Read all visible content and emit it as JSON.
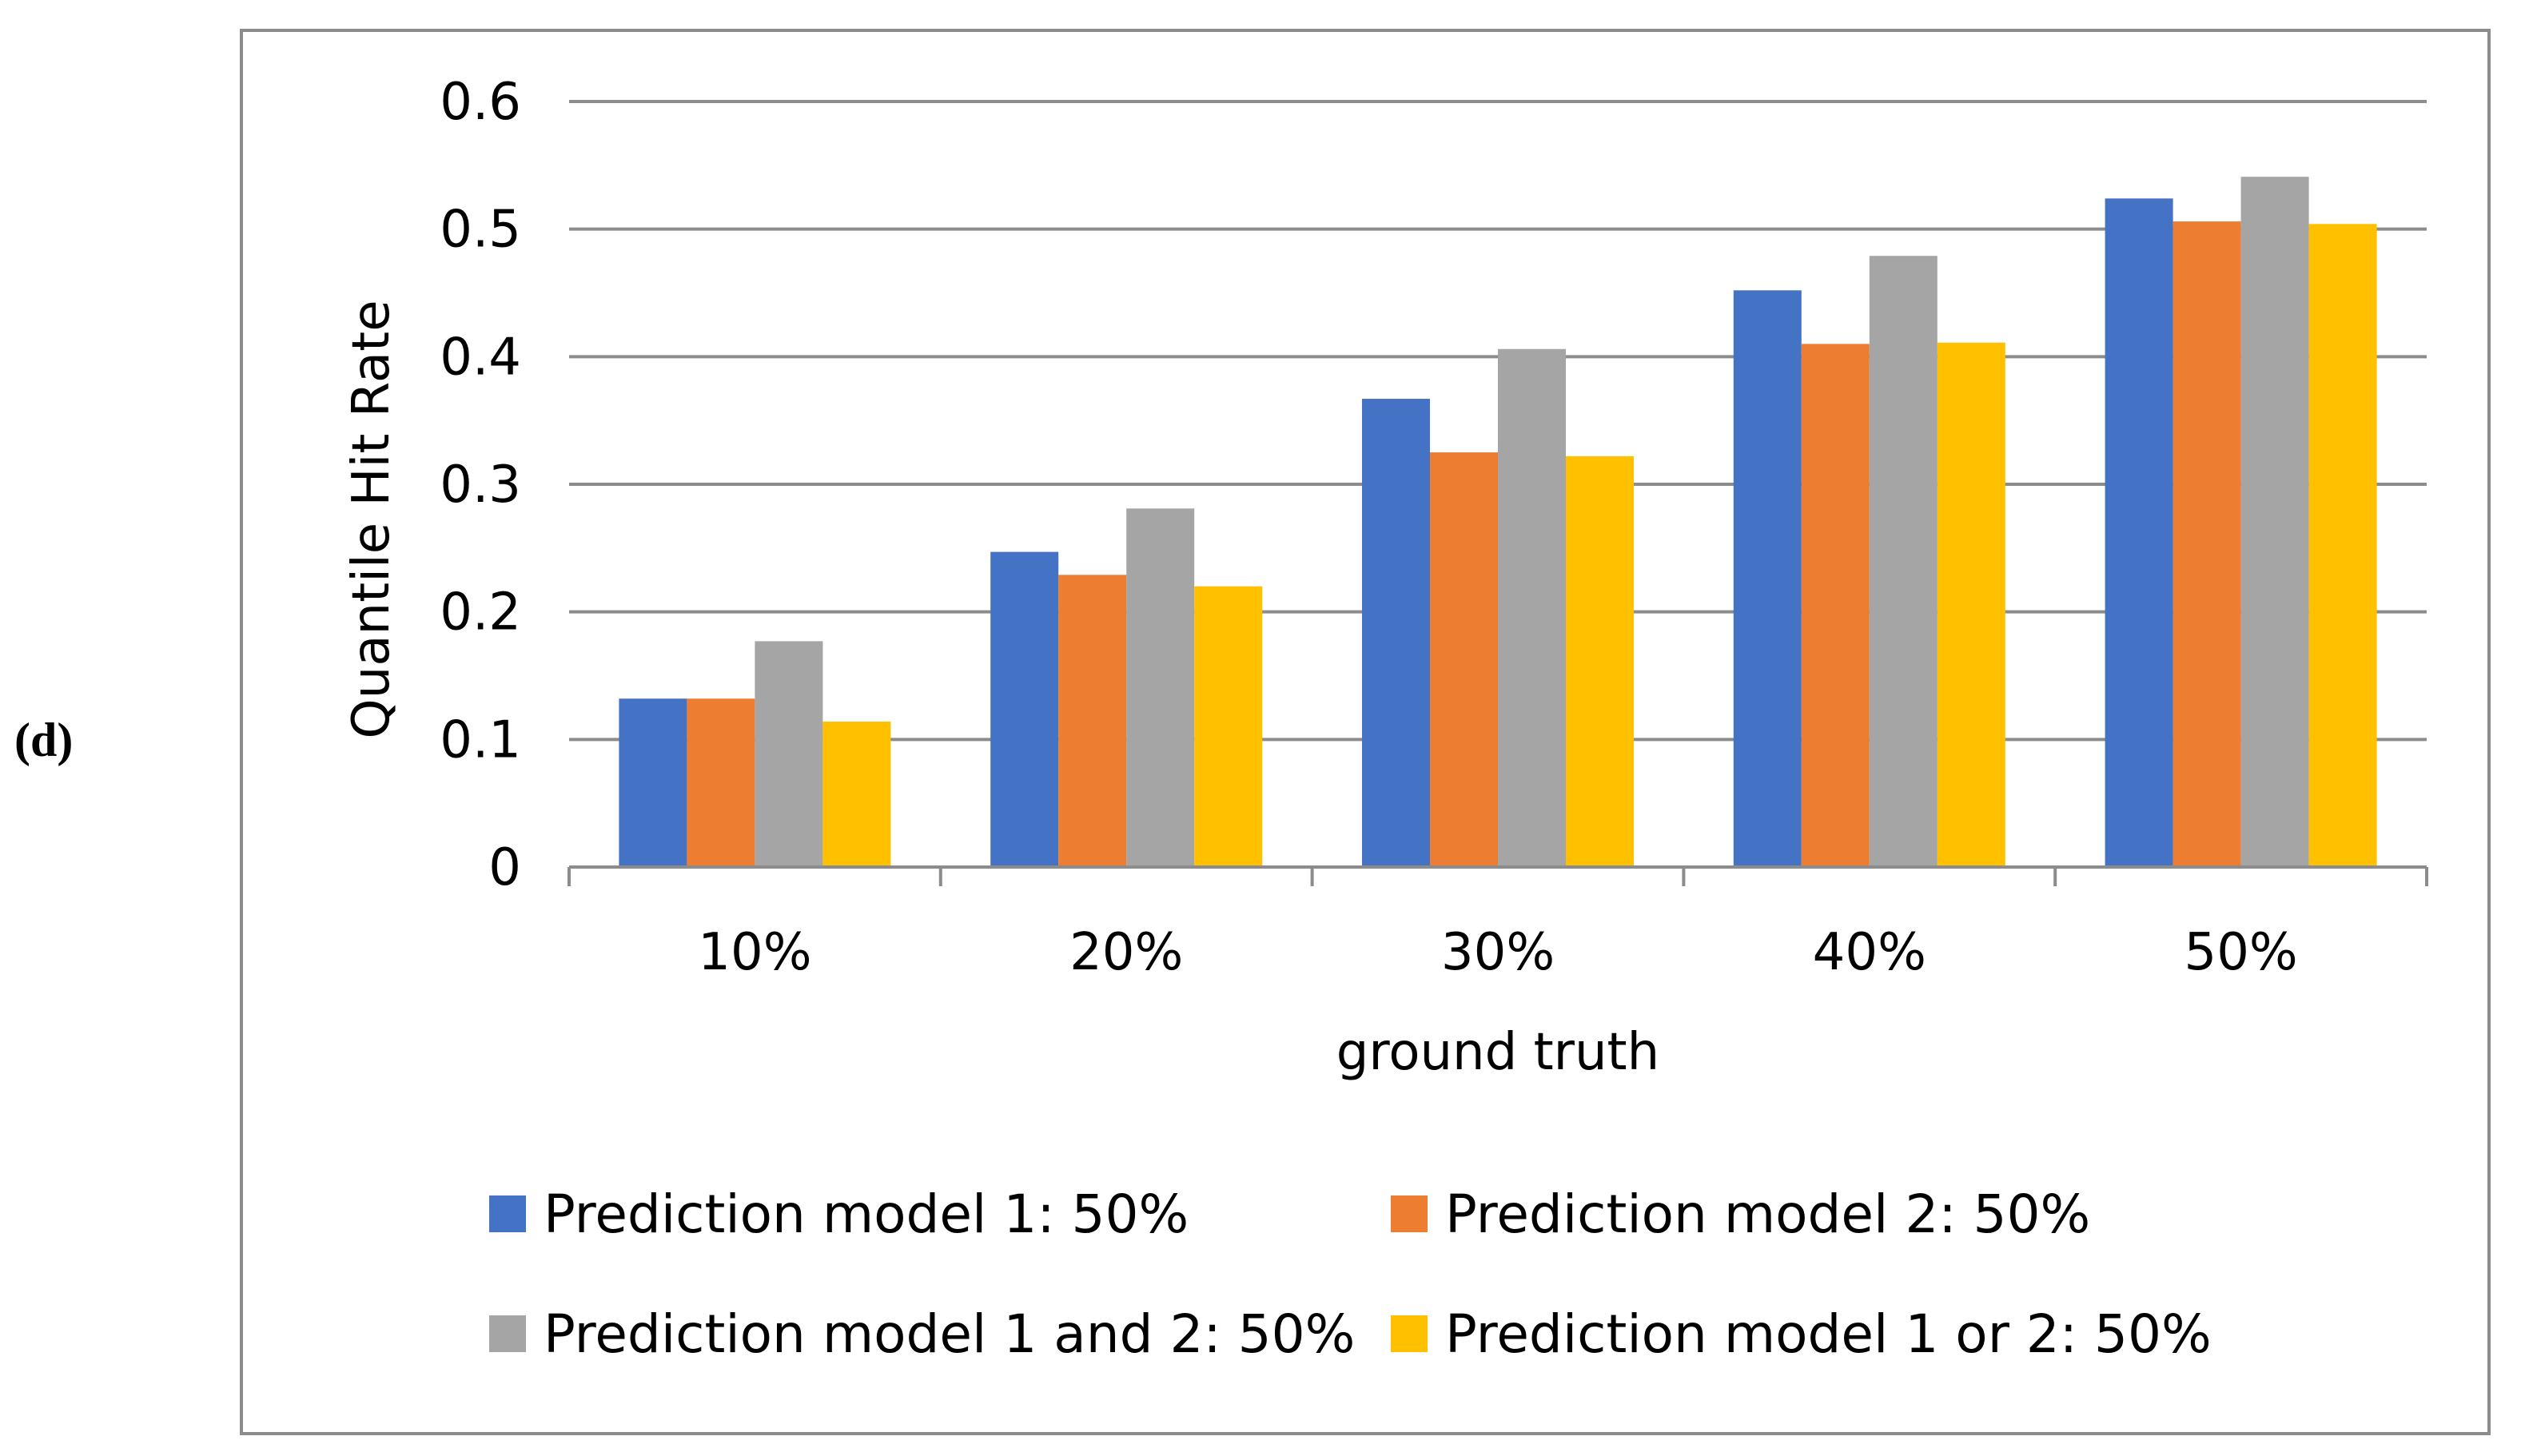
{
  "panel_label": "(d)",
  "chart_data": {
    "type": "bar",
    "categories": [
      "10%",
      "20%",
      "30%",
      "40%",
      "50%"
    ],
    "series": [
      {
        "name": "Prediction model 1: 50%",
        "color": "#4472C4",
        "values": [
          0.132,
          0.247,
          0.367,
          0.452,
          0.524
        ]
      },
      {
        "name": "Prediction model 2: 50%",
        "color": "#ED7D31",
        "values": [
          0.132,
          0.229,
          0.325,
          0.41,
          0.506
        ]
      },
      {
        "name": "Prediction model 1 and 2: 50%",
        "color": "#A5A5A5",
        "values": [
          0.177,
          0.281,
          0.406,
          0.479,
          0.541
        ]
      },
      {
        "name": "Prediction model 1 or 2: 50%",
        "color": "#FFC000",
        "values": [
          0.114,
          0.22,
          0.322,
          0.411,
          0.504
        ]
      }
    ],
    "xlabel": "ground truth",
    "ylabel": "Quantile Hit Rate",
    "ylim": [
      0,
      0.6
    ],
    "yticks": [
      "0",
      "0.1",
      "0.2",
      "0.3",
      "0.4",
      "0.5",
      "0.6"
    ],
    "grid": true,
    "legend_position": "bottom"
  }
}
